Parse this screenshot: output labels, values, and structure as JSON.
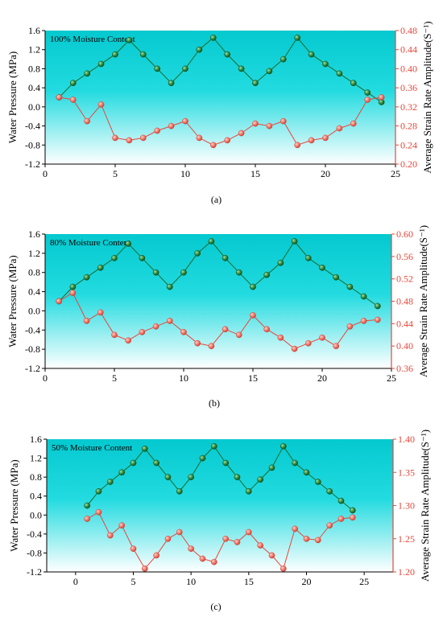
{
  "chart_data": [
    {
      "type": "line",
      "annotation": "100% Moisture Content",
      "caption": "(a)",
      "xlabel": "",
      "ylabel": "Water Pressure (MPa)",
      "y2label": "Average Strain Rate Amplitude(S⁻¹)",
      "xlim": [
        0,
        25
      ],
      "xticks": [
        0,
        5,
        10,
        15,
        20,
        25
      ],
      "ylim": [
        -1.2,
        1.6
      ],
      "yticks": [
        -1.2,
        -0.8,
        -0.4,
        0.0,
        0.4,
        0.8,
        1.2,
        1.6
      ],
      "y2lim": [
        0.2,
        0.48
      ],
      "y2ticks": [
        0.2,
        0.24,
        0.28,
        0.32,
        0.36,
        0.4,
        0.44,
        0.48
      ],
      "series": [
        {
          "axis": "left",
          "color": "#1a6b2a",
          "x": [
            1,
            2,
            3,
            4,
            5,
            6,
            7,
            8,
            9,
            10,
            11,
            12,
            13,
            14,
            15,
            16,
            17,
            18,
            19,
            20,
            21,
            22,
            23,
            24
          ],
          "values": [
            0.2,
            0.5,
            0.7,
            0.9,
            1.1,
            1.4,
            1.1,
            0.8,
            0.5,
            0.8,
            1.2,
            1.45,
            1.1,
            0.8,
            0.5,
            0.75,
            1.0,
            1.45,
            1.1,
            0.9,
            0.7,
            0.5,
            0.3,
            0.1
          ]
        },
        {
          "axis": "right",
          "color": "#e8463a",
          "x": [
            1,
            2,
            3,
            4,
            5,
            6,
            7,
            8,
            9,
            10,
            11,
            12,
            13,
            14,
            15,
            16,
            17,
            18,
            19,
            20,
            21,
            22,
            23,
            24
          ],
          "values": [
            0.34,
            0.335,
            0.29,
            0.325,
            0.255,
            0.25,
            0.255,
            0.27,
            0.28,
            0.29,
            0.255,
            0.24,
            0.25,
            0.265,
            0.285,
            0.28,
            0.29,
            0.24,
            0.25,
            0.255,
            0.275,
            0.285,
            0.335,
            0.34
          ]
        }
      ]
    },
    {
      "type": "line",
      "annotation": "80% Moisture Content",
      "caption": "(b)",
      "xlabel": "",
      "ylabel": "Water Pressure (MPa)",
      "y2label": "Average Strain Rate Amplitude(S⁻¹)",
      "xlim": [
        0,
        25
      ],
      "xticks": [
        0,
        5,
        10,
        15,
        20,
        25
      ],
      "ylim": [
        -1.2,
        1.6
      ],
      "yticks": [
        -1.2,
        -0.8,
        -0.4,
        0.0,
        0.4,
        0.8,
        1.2,
        1.6
      ],
      "y2lim": [
        0.36,
        0.6
      ],
      "y2ticks": [
        0.36,
        0.4,
        0.44,
        0.48,
        0.52,
        0.56,
        0.6
      ],
      "series": [
        {
          "axis": "left",
          "color": "#1a6b2a",
          "x": [
            1,
            2,
            3,
            4,
            5,
            6,
            7,
            8,
            9,
            10,
            11,
            12,
            13,
            14,
            15,
            16,
            17,
            18,
            19,
            20,
            21,
            22,
            23,
            24
          ],
          "values": [
            0.2,
            0.5,
            0.7,
            0.9,
            1.1,
            1.4,
            1.1,
            0.8,
            0.5,
            0.8,
            1.2,
            1.45,
            1.1,
            0.8,
            0.5,
            0.75,
            1.0,
            1.45,
            1.1,
            0.9,
            0.7,
            0.5,
            0.3,
            0.1
          ]
        },
        {
          "axis": "right",
          "color": "#e8463a",
          "x": [
            1,
            2,
            3,
            4,
            5,
            6,
            7,
            8,
            9,
            10,
            11,
            12,
            13,
            14,
            15,
            16,
            17,
            18,
            19,
            20,
            21,
            22,
            23,
            24
          ],
          "values": [
            0.48,
            0.495,
            0.445,
            0.46,
            0.42,
            0.41,
            0.425,
            0.435,
            0.445,
            0.425,
            0.405,
            0.4,
            0.43,
            0.42,
            0.455,
            0.43,
            0.415,
            0.395,
            0.405,
            0.415,
            0.4,
            0.435,
            0.445,
            0.447
          ]
        }
      ]
    },
    {
      "type": "line",
      "annotation": "50% Moisture Content",
      "caption": "(c)",
      "xlabel": "",
      "ylabel": "Water Pressure (MPa)",
      "y2label": "Average Strain Rate Amplitude(S⁻¹)",
      "xlim": [
        -2.5,
        27.5
      ],
      "xticks": [
        0,
        5,
        10,
        15,
        20,
        25
      ],
      "ylim": [
        -1.2,
        1.6
      ],
      "yticks": [
        -1.2,
        -0.8,
        -0.4,
        0.0,
        0.4,
        0.8,
        1.2,
        1.6
      ],
      "y2lim": [
        1.2,
        1.4
      ],
      "y2ticks": [
        1.2,
        1.25,
        1.3,
        1.35,
        1.4
      ],
      "series": [
        {
          "axis": "left",
          "color": "#1a6b2a",
          "x": [
            1,
            2,
            3,
            4,
            5,
            6,
            7,
            8,
            9,
            10,
            11,
            12,
            13,
            14,
            15,
            16,
            17,
            18,
            19,
            20,
            21,
            22,
            23,
            24
          ],
          "values": [
            0.2,
            0.5,
            0.7,
            0.9,
            1.1,
            1.4,
            1.1,
            0.8,
            0.5,
            0.8,
            1.2,
            1.45,
            1.1,
            0.8,
            0.5,
            0.75,
            1.0,
            1.45,
            1.1,
            0.9,
            0.7,
            0.5,
            0.3,
            0.1
          ]
        },
        {
          "axis": "right",
          "color": "#e8463a",
          "x": [
            1,
            2,
            3,
            4,
            5,
            6,
            7,
            8,
            9,
            10,
            11,
            12,
            13,
            14,
            15,
            16,
            17,
            18,
            19,
            20,
            21,
            22,
            23,
            24
          ],
          "values": [
            1.28,
            1.29,
            1.255,
            1.27,
            1.235,
            1.205,
            1.225,
            1.25,
            1.26,
            1.235,
            1.22,
            1.215,
            1.25,
            1.245,
            1.26,
            1.24,
            1.225,
            1.205,
            1.265,
            1.25,
            1.248,
            1.27,
            1.28,
            1.282
          ]
        }
      ]
    }
  ]
}
